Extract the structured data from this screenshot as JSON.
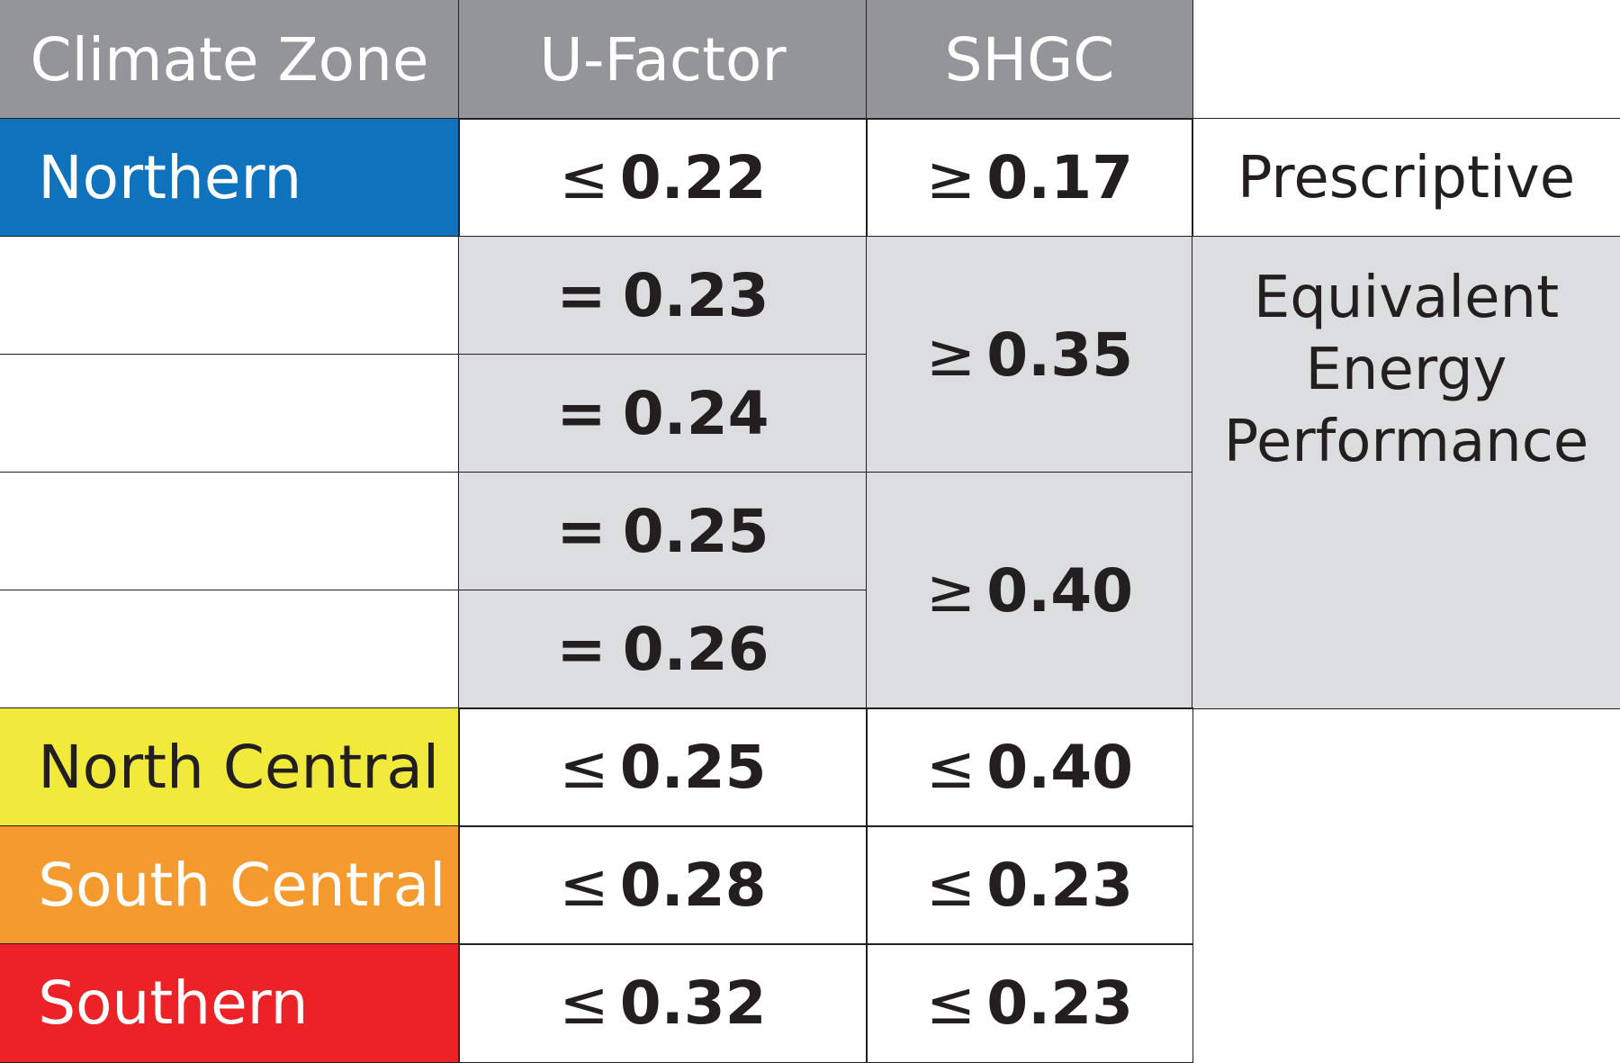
{
  "table": {
    "headers": [
      "Climate Zone",
      "U-Factor",
      "SHGC"
    ],
    "rows": [
      {
        "zone": "Northern",
        "zone_color": "#0f72bc",
        "u_sym": "≤",
        "u_val": "0.22",
        "shgc_sym": "≥",
        "shgc_val": "0.17"
      },
      {
        "zone": "",
        "u_sym": "=",
        "u_val": "0.23"
      },
      {
        "zone": "",
        "u_sym": "=",
        "u_val": "0.24"
      },
      {
        "zone": "",
        "u_sym": "=",
        "u_val": "0.25"
      },
      {
        "zone": "",
        "u_sym": "=",
        "u_val": "0.26"
      },
      {
        "zone": "North Central",
        "zone_color": "#f1ea3a",
        "u_sym": "≤",
        "u_val": "0.25",
        "shgc_sym": "≤",
        "shgc_val": "0.40"
      },
      {
        "zone": "South Central",
        "zone_color": "#f59a2f",
        "u_sym": "≤",
        "u_val": "0.28",
        "shgc_sym": "≤",
        "shgc_val": "0.23"
      },
      {
        "zone": "Southern",
        "zone_color": "#ec2227",
        "u_sym": "≤",
        "u_val": "0.32",
        "shgc_sym": "≤",
        "shgc_val": "0.23"
      }
    ],
    "merged_shgc": [
      {
        "sym": "≥",
        "val": "0.35"
      },
      {
        "sym": "≥",
        "val": "0.40"
      }
    ],
    "notes": {
      "prescriptive": "Prescriptive",
      "equivalent": [
        "Equivalent",
        "Energy",
        "Performance"
      ]
    },
    "colors": {
      "header_bg": "#939598",
      "shade_bg": "#dcddde",
      "border": "#231f20"
    }
  }
}
